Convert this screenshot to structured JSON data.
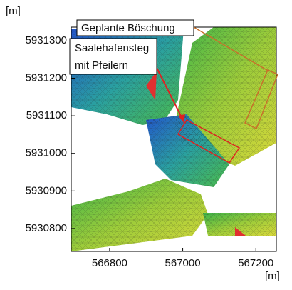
{
  "y_axis": {
    "unit": "[m]",
    "lim": [
      5930739,
      5931336
    ],
    "ticks": [
      5930800,
      5930900,
      5931000,
      5931100,
      5931200,
      5931300
    ]
  },
  "x_axis": {
    "unit": "[m]",
    "lim": [
      566695,
      567256
    ],
    "ticks": [
      566800,
      567000,
      567200
    ]
  },
  "annotations": {
    "boeschung": "Geplante Böschung",
    "steg_line1": "Saalehafensteg",
    "steg_line2": "mit Pfeilern"
  }
}
